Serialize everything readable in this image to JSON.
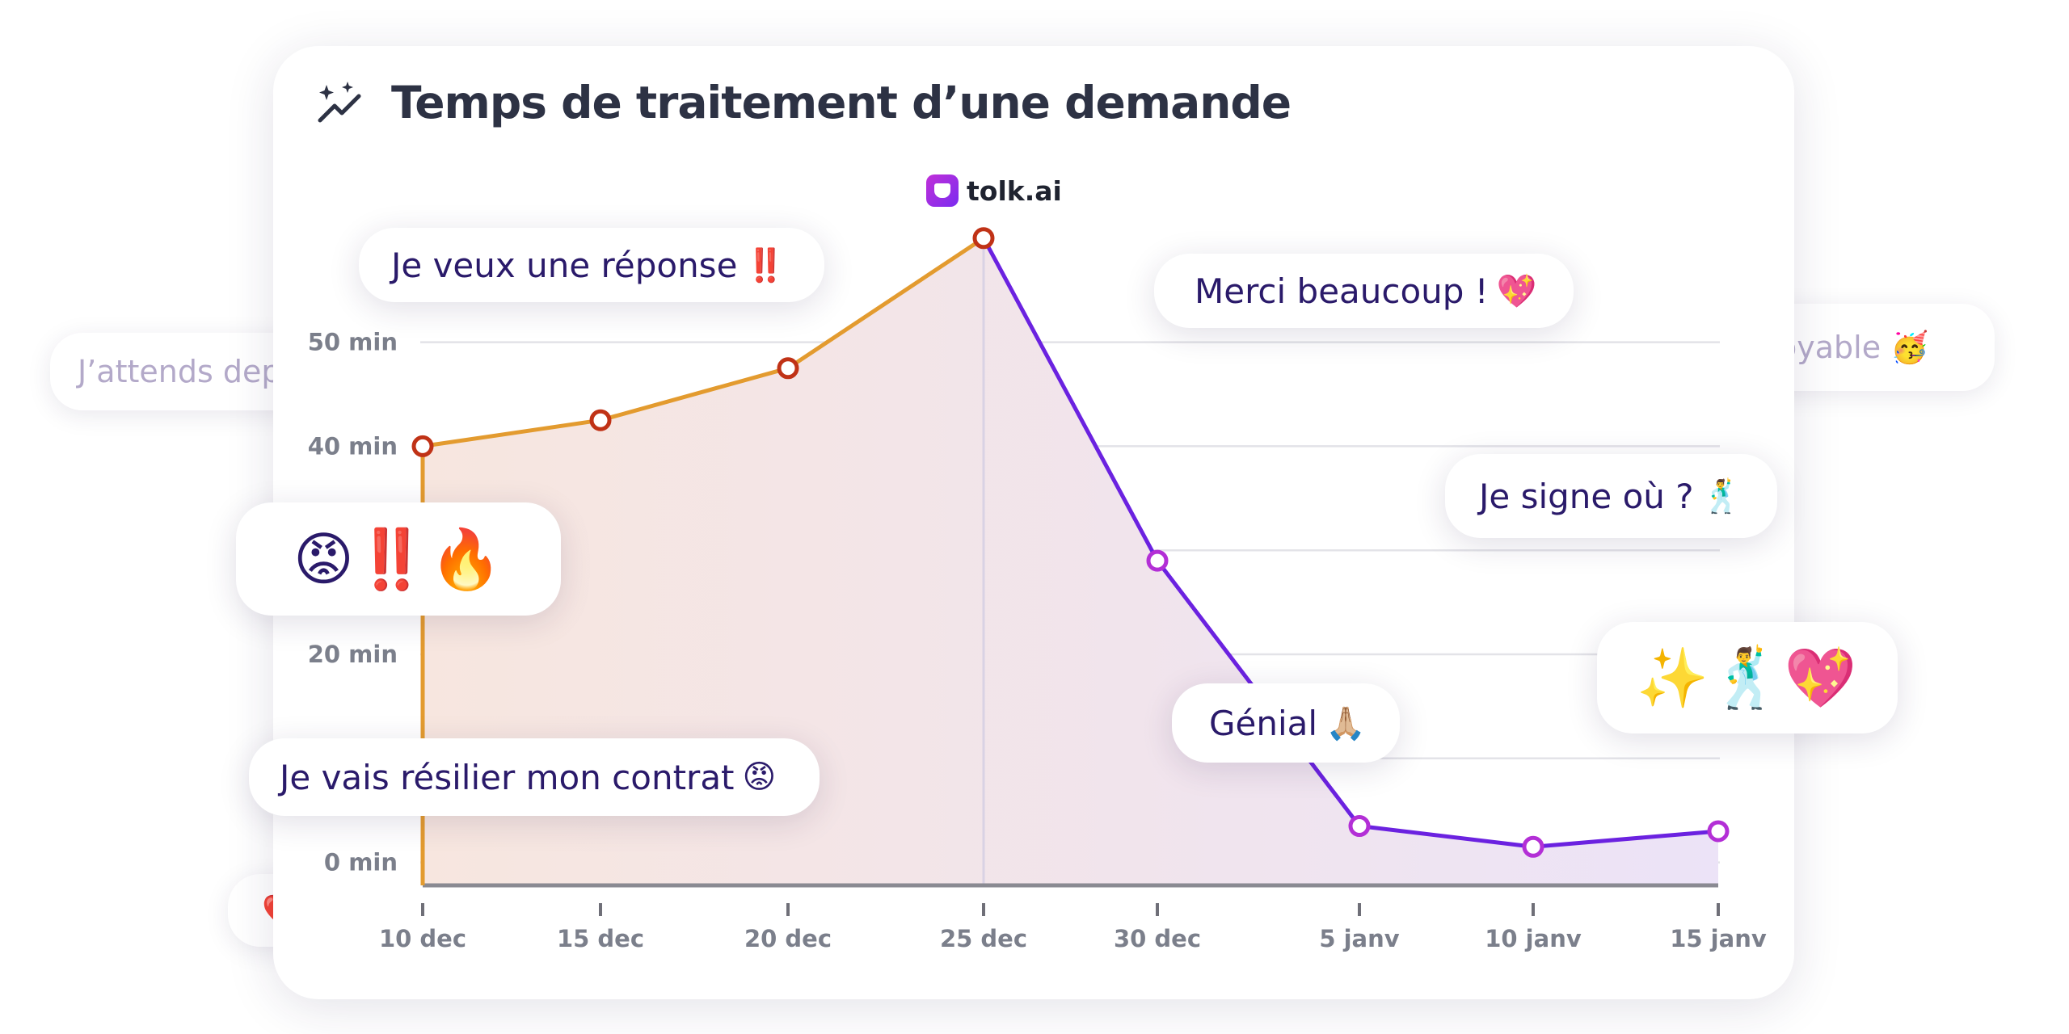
{
  "title": "Temps de traitement d’une demande",
  "brand": "tolk.ai",
  "ghost_bubbles": [
    {
      "text": "J’attends dep"
    },
    {
      "text": "oyable 🥳"
    },
    {
      "text": "💔"
    }
  ],
  "bubbles": [
    {
      "text": "Je veux une réponse",
      "emoji": "‼️"
    },
    {
      "text": "Merci beaucoup !",
      "emoji": "💖"
    },
    {
      "text": "Je signe où ?",
      "emoji": "🕺"
    },
    {
      "text": "",
      "emoji": "😡‼️🔥"
    },
    {
      "text": "",
      "emoji": "✨🕺💖"
    },
    {
      "text": "Génial",
      "emoji": "🙏🏼"
    },
    {
      "text": "Je vais résilier mon contrat",
      "emoji": "😡"
    }
  ],
  "colors": {
    "orange": "#E39B2F",
    "purple": "#6B22E0",
    "point_red": "#C03216",
    "point_magenta": "#B32FD6",
    "grid": "#e3e3e8",
    "axis": "#8a8a92"
  },
  "chart_data": {
    "type": "line",
    "title": "Temps de traitement d’une demande",
    "xlabel": "",
    "ylabel": "",
    "x": [
      "10 dec",
      "15 dec",
      "20 dec",
      "25 dec",
      "30 dec",
      "5 janv",
      "10 janv",
      "15 janv"
    ],
    "series": [
      {
        "values": [
          40,
          42.5,
          47.5,
          60,
          29,
          3.5,
          1.5,
          3
        ]
      }
    ],
    "yticks": [
      0,
      20,
      40,
      50
    ],
    "ytick_labels": [
      "0 min",
      "20 min",
      "40 min",
      "50 min"
    ],
    "ylim": [
      -1.5,
      60
    ],
    "grid": true,
    "peak_marker": "25 dec",
    "line_colors": [
      "orange until 25 dec",
      "purple after 25 dec"
    ]
  }
}
